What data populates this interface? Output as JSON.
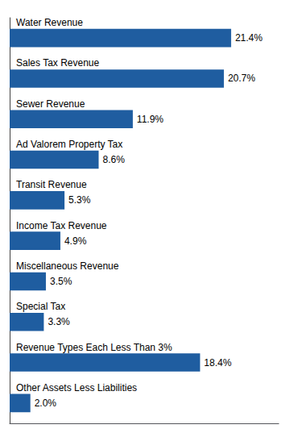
{
  "chart_data": {
    "type": "bar",
    "orientation": "horizontal",
    "categories": [
      "Water Revenue",
      "Sales Tax Revenue",
      "Sewer Revenue",
      "Ad Valorem Property Tax",
      "Transit Revenue",
      "Income Tax Revenue",
      "Miscellaneous Revenue",
      "Special Tax",
      "Revenue Types Each Less Than 3%",
      "Other Assets Less Liabilities"
    ],
    "values": [
      21.4,
      20.7,
      11.9,
      8.6,
      5.3,
      4.9,
      3.5,
      3.3,
      18.4,
      2.0
    ],
    "value_labels": [
      "21.4%",
      "20.7%",
      "11.9%",
      "8.6%",
      "5.3%",
      "4.9%",
      "3.5%",
      "3.3%",
      "18.4%",
      "2.0%"
    ],
    "data_labels": true,
    "color": "#1F5DA0",
    "xlim": [
      0,
      26
    ],
    "tick_labels": false,
    "grid": false
  }
}
